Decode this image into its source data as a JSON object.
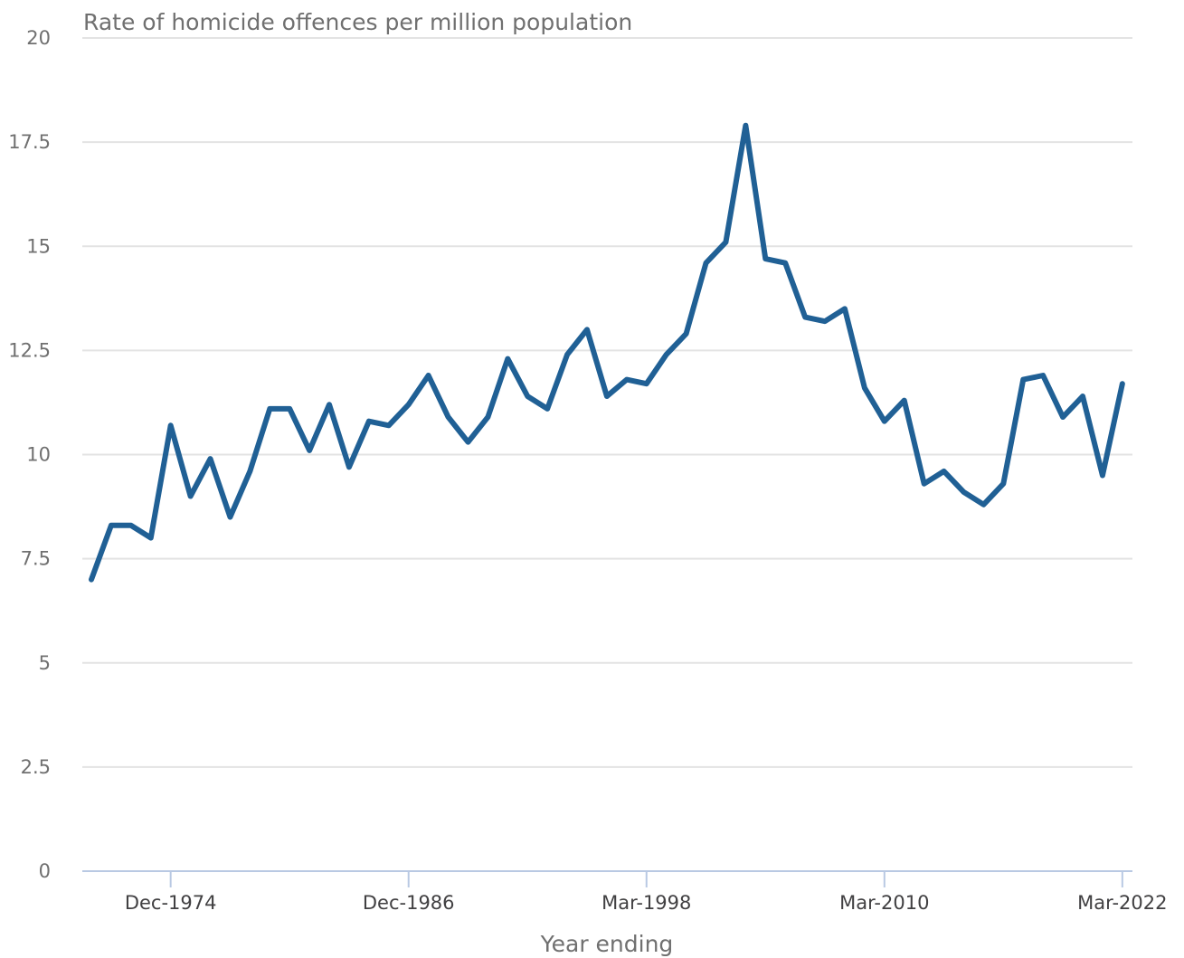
{
  "chart_data": {
    "type": "line",
    "title": "Rate of homicide offences per million population",
    "xlabel": "Year ending",
    "ylabel": "",
    "ylim": [
      0,
      20
    ],
    "yticks": [
      "0",
      "2.5",
      "5",
      "7.5",
      "10",
      "12.5",
      "15",
      "17.5",
      "20"
    ],
    "grid": true,
    "x_tick_labels": [
      {
        "label": "Dec-1974",
        "index": 4
      },
      {
        "label": "Dec-1986",
        "index": 16
      },
      {
        "label": "Mar-1998",
        "index": 28
      },
      {
        "label": "Mar-2010",
        "index": 40
      },
      {
        "label": "Mar-2022",
        "index": 52
      }
    ],
    "series": [
      {
        "name": "",
        "color": "#206095",
        "values": [
          7.0,
          8.3,
          8.3,
          8.0,
          10.7,
          9.0,
          9.9,
          8.5,
          9.6,
          11.1,
          11.1,
          10.1,
          11.2,
          9.7,
          10.8,
          10.7,
          11.2,
          11.9,
          10.9,
          10.3,
          10.9,
          12.3,
          11.4,
          11.1,
          12.4,
          13.0,
          11.4,
          11.8,
          11.7,
          12.4,
          12.9,
          14.6,
          15.1,
          17.9,
          14.7,
          14.6,
          13.3,
          13.2,
          13.5,
          11.6,
          10.8,
          11.3,
          9.3,
          9.6,
          9.1,
          8.8,
          9.3,
          11.8,
          11.9,
          10.9,
          11.4,
          9.5,
          11.7
        ]
      }
    ]
  }
}
